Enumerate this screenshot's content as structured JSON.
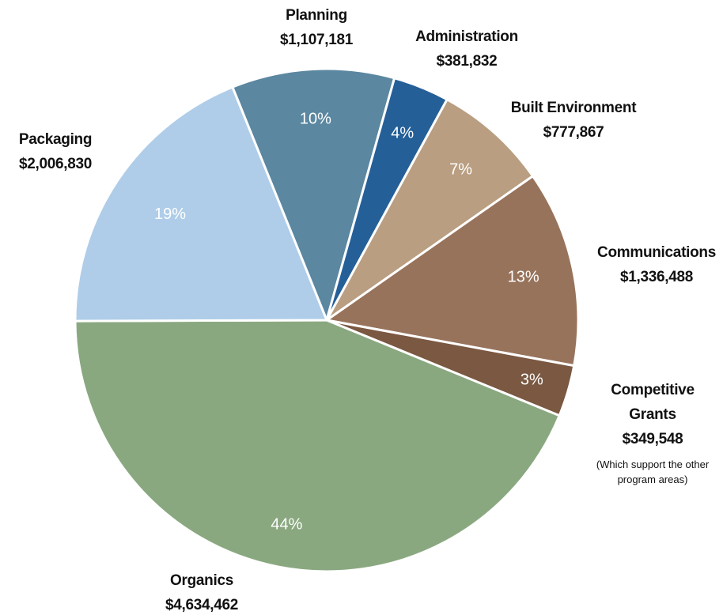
{
  "chart_data": {
    "type": "pie",
    "categories": [
      "Planning",
      "Administration",
      "Built Environment",
      "Communications",
      "Competitive Grants",
      "Organics",
      "Packaging"
    ],
    "values": [
      1107181,
      381832,
      777867,
      1336488,
      349548,
      4634462,
      2006830
    ],
    "value_labels": [
      "$1,107,181",
      "$381,832",
      "$777,867",
      "$1,336,488",
      "$349,548",
      "$4,634,462",
      "$2,006,830"
    ],
    "percent_labels": [
      "10%",
      "4%",
      "7%",
      "13%",
      "3%",
      "44%",
      "19%"
    ],
    "colors": [
      "#5b87a0",
      "#255f98",
      "#b99e81",
      "#98735c",
      "#7a5841",
      "#8aa880",
      "#afcde8"
    ],
    "annotation": "(Which support the other program areas)"
  }
}
